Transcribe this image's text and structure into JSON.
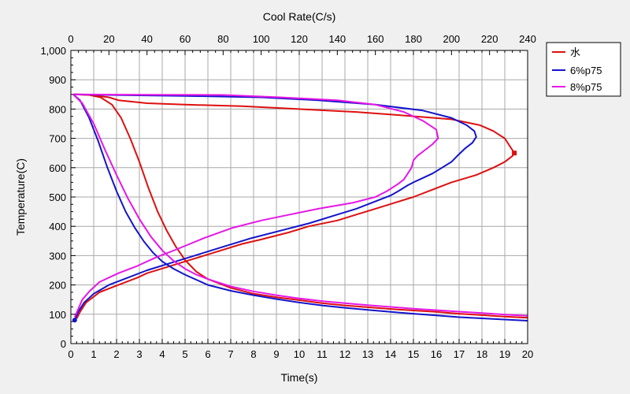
{
  "chart_data": {
    "type": "line",
    "title": "",
    "xlabel": "Time(s)",
    "ylabel": "Temperature(C)",
    "x2label": "Cool Rate(C/s)",
    "xlim": [
      0,
      20
    ],
    "ylim": [
      0,
      1000
    ],
    "x2lim": [
      0,
      240
    ],
    "x_ticks": [
      0,
      1,
      2,
      3,
      4,
      5,
      6,
      7,
      8,
      9,
      10,
      11,
      12,
      13,
      14,
      15,
      16,
      17,
      18,
      19,
      20
    ],
    "y_ticks": [
      0,
      100,
      200,
      300,
      400,
      500,
      600,
      700,
      800,
      900,
      1000
    ],
    "y_tick_labels": [
      "0",
      "100",
      "200",
      "300",
      "400",
      "500",
      "600",
      "700",
      "800",
      "900",
      "1,000"
    ],
    "x2_ticks": [
      0,
      20,
      40,
      60,
      80,
      100,
      120,
      140,
      160,
      180,
      200,
      220,
      240
    ],
    "grid": true,
    "legend_position": "top-right-outside",
    "series": [
      {
        "name": "水",
        "color": "#dd1010",
        "cooling_curve": {
          "axis": "time",
          "points": [
            [
              0.1,
              850
            ],
            [
              0.8,
              848
            ],
            [
              1.3,
              840
            ],
            [
              1.8,
              815
            ],
            [
              2.2,
              770
            ],
            [
              2.6,
              700
            ],
            [
              3.0,
              620
            ],
            [
              3.4,
              530
            ],
            [
              3.8,
              450
            ],
            [
              4.2,
              385
            ],
            [
              4.6,
              330
            ],
            [
              5.0,
              285
            ],
            [
              5.5,
              245
            ],
            [
              6.0,
              220
            ],
            [
              7.0,
              190
            ],
            [
              8.0,
              170
            ],
            [
              9.0,
              158
            ],
            [
              10.0,
              148
            ],
            [
              11.0,
              138
            ],
            [
              12.0,
              130
            ],
            [
              13.0,
              124
            ],
            [
              14.0,
              118
            ],
            [
              15.0,
              113
            ],
            [
              16.0,
              108
            ],
            [
              17.0,
              102
            ],
            [
              18.0,
              97
            ],
            [
              19.0,
              92
            ],
            [
              20.0,
              88
            ]
          ]
        },
        "cool_rate_curve": {
          "axis": "cool_rate",
          "points": [
            [
              2,
              850
            ],
            [
              10,
              848
            ],
            [
              20,
              840
            ],
            [
              25,
              830
            ],
            [
              40,
              820
            ],
            [
              60,
              815
            ],
            [
              90,
              810
            ],
            [
              120,
              800
            ],
            [
              150,
              790
            ],
            [
              175,
              778
            ],
            [
              200,
              765
            ],
            [
              215,
              745
            ],
            [
              222,
              725
            ],
            [
              228,
              700
            ],
            [
              230,
              680
            ],
            [
              232,
              660
            ],
            [
              233,
              650
            ],
            [
              232,
              640
            ],
            [
              228,
              620
            ],
            [
              222,
              600
            ],
            [
              213,
              575
            ],
            [
              200,
              550
            ],
            [
              190,
              525
            ],
            [
              180,
              500
            ],
            [
              170,
              480
            ],
            [
              160,
              460
            ],
            [
              150,
              440
            ],
            [
              140,
              420
            ],
            [
              125,
              400
            ],
            [
              115,
              380
            ],
            [
              100,
              355
            ],
            [
              90,
              340
            ],
            [
              75,
              310
            ],
            [
              60,
              280
            ],
            [
              50,
              260
            ],
            [
              40,
              240
            ],
            [
              35,
              225
            ],
            [
              25,
              200
            ],
            [
              15,
              175
            ],
            [
              8,
              140
            ],
            [
              5,
              110
            ],
            [
              3,
              85
            ]
          ]
        }
      },
      {
        "name": "6%p75",
        "color": "#1414cc",
        "cooling_curve": {
          "axis": "time",
          "points": [
            [
              0.1,
              850
            ],
            [
              0.4,
              830
            ],
            [
              0.8,
              770
            ],
            [
              1.2,
              690
            ],
            [
              1.6,
              600
            ],
            [
              2.0,
              520
            ],
            [
              2.4,
              450
            ],
            [
              2.8,
              395
            ],
            [
              3.2,
              348
            ],
            [
              3.6,
              310
            ],
            [
              4.0,
              280
            ],
            [
              4.5,
              255
            ],
            [
              5.0,
              235
            ],
            [
              6.0,
              200
            ],
            [
              7.0,
              180
            ],
            [
              8.0,
              165
            ],
            [
              9.0,
              152
            ],
            [
              10.0,
              140
            ],
            [
              11.0,
              130
            ],
            [
              12.0,
              122
            ],
            [
              13.0,
              115
            ],
            [
              14.0,
              108
            ],
            [
              15.0,
              102
            ],
            [
              16.0,
              96
            ],
            [
              17.0,
              90
            ],
            [
              18.0,
              86
            ],
            [
              19.0,
              82
            ],
            [
              20.0,
              78
            ]
          ]
        },
        "cool_rate_curve": {
          "axis": "cool_rate",
          "points": [
            [
              2,
              850
            ],
            [
              20,
              848
            ],
            [
              60,
              845
            ],
            [
              100,
              840
            ],
            [
              130,
              830
            ],
            [
              160,
              815
            ],
            [
              185,
              795
            ],
            [
              200,
              770
            ],
            [
              208,
              745
            ],
            [
              212,
              725
            ],
            [
              213,
              705
            ],
            [
              211,
              685
            ],
            [
              207,
              665
            ],
            [
              203,
              640
            ],
            [
              200,
              620
            ],
            [
              195,
              600
            ],
            [
              190,
              580
            ],
            [
              185,
              565
            ],
            [
              180,
              550
            ],
            [
              177,
              540
            ],
            [
              172,
              520
            ],
            [
              168,
              505
            ],
            [
              158,
              480
            ],
            [
              150,
              460
            ],
            [
              140,
              440
            ],
            [
              125,
              410
            ],
            [
              110,
              385
            ],
            [
              95,
              360
            ],
            [
              80,
              330
            ],
            [
              65,
              300
            ],
            [
              50,
              270
            ],
            [
              40,
              250
            ],
            [
              30,
              225
            ],
            [
              20,
              200
            ],
            [
              12,
              170
            ],
            [
              7,
              140
            ],
            [
              4,
              110
            ],
            [
              2,
              80
            ]
          ]
        }
      },
      {
        "name": "8%p75",
        "color": "#e617e6",
        "cooling_curve": {
          "axis": "time",
          "points": [
            [
              0.1,
              850
            ],
            [
              0.5,
              820
            ],
            [
              1.0,
              750
            ],
            [
              1.5,
              660
            ],
            [
              2.0,
              575
            ],
            [
              2.5,
              495
            ],
            [
              3.0,
              425
            ],
            [
              3.5,
              365
            ],
            [
              4.0,
              318
            ],
            [
              4.5,
              282
            ],
            [
              5.0,
              255
            ],
            [
              5.5,
              235
            ],
            [
              6.0,
              220
            ],
            [
              7.0,
              195
            ],
            [
              8.0,
              178
            ],
            [
              9.0,
              165
            ],
            [
              10.0,
              154
            ],
            [
              11.0,
              145
            ],
            [
              12.0,
              138
            ],
            [
              13.0,
              131
            ],
            [
              14.0,
              125
            ],
            [
              15.0,
              119
            ],
            [
              16.0,
              114
            ],
            [
              17.0,
              109
            ],
            [
              18.0,
              104
            ],
            [
              19.0,
              99
            ],
            [
              20.0,
              95
            ]
          ]
        },
        "cool_rate_curve": {
          "axis": "cool_rate",
          "points": [
            [
              2,
              850
            ],
            [
              40,
              849
            ],
            [
              80,
              848
            ],
            [
              110,
              840
            ],
            [
              140,
              830
            ],
            [
              160,
              815
            ],
            [
              175,
              790
            ],
            [
              185,
              760
            ],
            [
              192,
              730
            ],
            [
              193,
              700
            ],
            [
              190,
              680
            ],
            [
              186,
              660
            ],
            [
              182,
              640
            ],
            [
              180,
              625
            ],
            [
              179,
              600
            ],
            [
              177,
              580
            ],
            [
              175,
              560
            ],
            [
              172,
              545
            ],
            [
              166,
              520
            ],
            [
              160,
              500
            ],
            [
              148,
              480
            ],
            [
              130,
              460
            ],
            [
              115,
              440
            ],
            [
              100,
              420
            ],
            [
              85,
              395
            ],
            [
              70,
              360
            ],
            [
              55,
              320
            ],
            [
              45,
              295
            ],
            [
              35,
              265
            ],
            [
              25,
              240
            ],
            [
              15,
              210
            ],
            [
              10,
              180
            ],
            [
              6,
              150
            ],
            [
              4,
              120
            ],
            [
              2,
              90
            ]
          ]
        }
      }
    ]
  }
}
